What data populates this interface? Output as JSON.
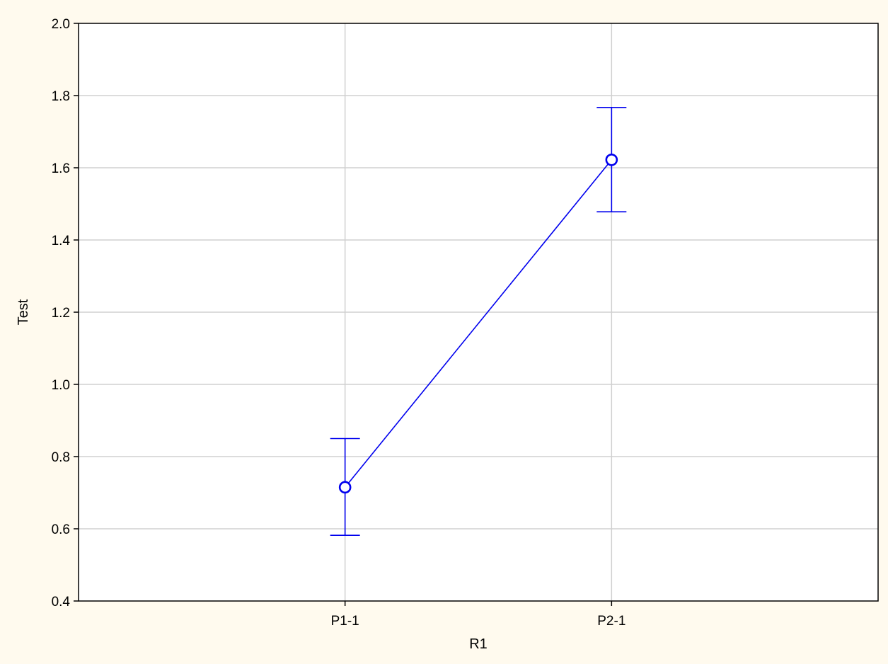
{
  "chart_data": {
    "type": "line",
    "title": "",
    "xlabel": "R1",
    "ylabel": "Test",
    "categories": [
      "P1-1",
      "P2-1"
    ],
    "ylim": [
      0.4,
      2.0
    ],
    "yticks": [
      "0.4",
      "0.6",
      "0.8",
      "1.0",
      "1.2",
      "1.4",
      "1.6",
      "1.8",
      "2.0"
    ],
    "grid": true,
    "legend": "none",
    "series": [
      {
        "values": [
          0.715,
          1.622
        ],
        "error_low": [
          0.582,
          1.478
        ],
        "error_high": [
          0.85,
          1.767
        ],
        "marker": "circle"
      }
    ],
    "colors": {
      "series": "#0000ee",
      "frame_background": "#fffaee",
      "plot_background": "#ffffff",
      "grid": "#d0d0d0",
      "axis": "#000000"
    }
  }
}
